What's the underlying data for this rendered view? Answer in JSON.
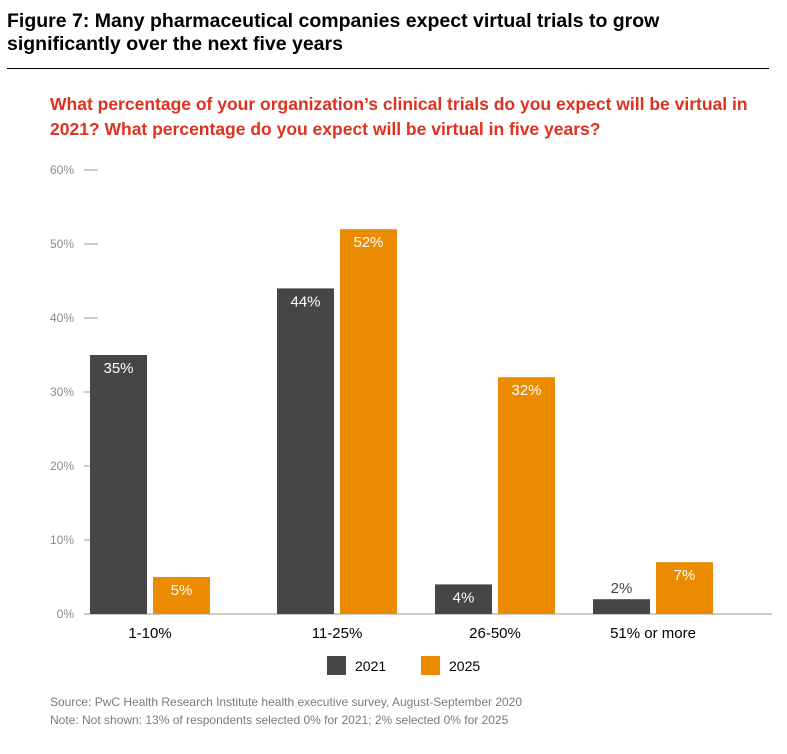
{
  "header": {
    "title": "Figure 7: Many pharmaceutical companies expect virtual trials to grow significantly over the next five years",
    "question": "What percentage of your organization’s clinical trials do you expect will be virtual in 2021? What percentage do you expect will be virtual in five years?"
  },
  "chart_data": {
    "type": "bar",
    "categories": [
      "1-10%",
      "11-25%",
      "26-50%",
      "51% or more"
    ],
    "series": [
      {
        "name": "2021",
        "values": [
          35,
          44,
          4,
          2
        ],
        "labels": [
          "35%",
          "44%",
          "4%",
          "2%"
        ],
        "color": "#464646"
      },
      {
        "name": "2025",
        "values": [
          5,
          52,
          32,
          7
        ],
        "labels": [
          "5%",
          "52%",
          "32%",
          "7%"
        ],
        "color": "#eb8c00"
      }
    ],
    "y_ticks": [
      {
        "value": 0,
        "label": "0%"
      },
      {
        "value": 10,
        "label": "10%"
      },
      {
        "value": 20,
        "label": "20%"
      },
      {
        "value": 30,
        "label": "30%"
      },
      {
        "value": 40,
        "label": "40%"
      },
      {
        "value": 50,
        "label": "50%"
      },
      {
        "value": 60,
        "label": "60%"
      }
    ],
    "ylim": [
      0,
      60
    ],
    "grid": false,
    "legend_position": "bottom-center"
  },
  "footer": {
    "source": "Source: PwC Health Research Institute health executive survey, August-September 2020",
    "note": "Note: Not shown: 13% of respondents selected 0% for 2021; 2% selected 0% for 2025"
  }
}
